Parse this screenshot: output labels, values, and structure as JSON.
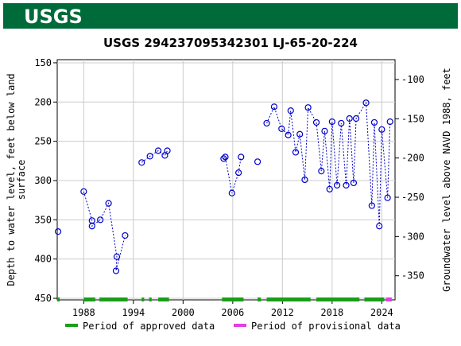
{
  "header": {
    "logo": "USGS"
  },
  "chart_data": {
    "type": "line",
    "title": "USGS 294237095342301 LJ-65-20-224",
    "ylabel": [
      "Depth to water level, feet below land",
      "surface"
    ],
    "y2label": "Groundwater level above NAVD 1988, feet",
    "xlim": [
      1984.8,
      2025.6
    ],
    "xticks": [
      1988,
      1994,
      2000,
      2006,
      2012,
      2018,
      2024
    ],
    "ylim": [
      146,
      452
    ],
    "inverted_y": true,
    "yticks": [
      150,
      200,
      250,
      300,
      350,
      400,
      450
    ],
    "y2lim": [
      -74.7,
      -380.7
    ],
    "y2ticks": [
      -100,
      -150,
      -200,
      -250,
      -300,
      -350
    ],
    "grid": true,
    "series": [
      {
        "name": "Depth to water level",
        "color": "#0000cc",
        "x": [
          1984.9,
          null,
          1988.0,
          1989.0,
          1989.0,
          1990.0,
          1991.0,
          1992.0,
          1991.9,
          1993.0,
          null,
          1995.0,
          1996.0,
          1997.0,
          1997.8,
          1998.1,
          null,
          2004.9,
          2005.1,
          2005.9,
          2006.7,
          2007.0,
          null,
          2009.0,
          null,
          2010.1,
          2011.0,
          2011.9,
          2012.7,
          2013.0,
          2013.6,
          2014.1,
          2014.7,
          2015.1,
          2016.1,
          2016.7,
          2017.1,
          2017.7,
          2018.0,
          2018.6,
          2019.1,
          2019.7,
          2020.1,
          2020.6,
          2020.9,
          2022.1,
          2022.8,
          2023.1,
          2023.7,
          2024.0,
          2024.7,
          2025.0
        ],
        "values": [
          365,
          null,
          314,
          351,
          358,
          350,
          329,
          397,
          415,
          370,
          null,
          277,
          269,
          262,
          268,
          262,
          null,
          272,
          270,
          316,
          290,
          270,
          null,
          276,
          null,
          227,
          206,
          234,
          242,
          211,
          264,
          241,
          299,
          207,
          226,
          288,
          237,
          311,
          225,
          306,
          227,
          306,
          221,
          303,
          221,
          201,
          332,
          226,
          358,
          235,
          322,
          225
        ]
      }
    ],
    "periods": [
      {
        "name": "Period of approved data",
        "color": "#1a9e1a",
        "ranges": [
          [
            1984.8,
            1985.1
          ],
          [
            1988.0,
            1989.4
          ],
          [
            1989.9,
            1993.3
          ],
          [
            1995.0,
            1995.3
          ],
          [
            1995.9,
            1996.2
          ],
          [
            1997.0,
            1998.3
          ],
          [
            2004.7,
            2007.3
          ],
          [
            2009.0,
            2009.4
          ],
          [
            2010.1,
            2015.4
          ],
          [
            2016.1,
            2021.3
          ],
          [
            2021.9,
            2024.3
          ]
        ]
      },
      {
        "name": "Period of provisional data",
        "color": "#e040e0",
        "ranges": [
          [
            2024.5,
            2025.2
          ]
        ]
      }
    ]
  }
}
